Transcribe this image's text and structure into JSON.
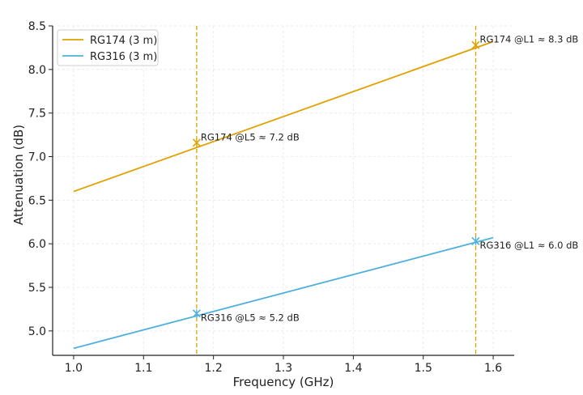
{
  "chart_data": {
    "type": "line",
    "xlabel": "Frequency (GHz)",
    "ylabel": "Attenuation (dB)",
    "xlim": [
      0.97,
      1.63
    ],
    "ylim": [
      4.72,
      8.5
    ],
    "xticks": [
      "1.0",
      "1.1",
      "1.2",
      "1.3",
      "1.4",
      "1.5",
      "1.6"
    ],
    "yticks": [
      "5.0",
      "5.5",
      "6.0",
      "6.5",
      "7.0",
      "7.5",
      "8.0",
      "8.5"
    ],
    "grid": true,
    "legend_position": "top-left",
    "series": [
      {
        "name": "RG174 (3 m)",
        "color": "#E0A100",
        "x": [
          1.0,
          1.6
        ],
        "y": [
          6.6,
          8.32
        ]
      },
      {
        "name": "RG316 (3 m)",
        "color": "#4EB0DE",
        "x": [
          1.0,
          1.6
        ],
        "y": [
          4.8,
          6.07
        ]
      }
    ],
    "vlines": [
      {
        "x": 1.176,
        "color": "#E0A100",
        "style": "dashed"
      },
      {
        "x": 1.575,
        "color": "#E0A100",
        "style": "dashed"
      }
    ],
    "markers": [
      {
        "series": 0,
        "x": 1.176,
        "y": 7.16,
        "label": "RG174 @L5 ≈ 7.2 dB",
        "label_pos": "right"
      },
      {
        "series": 0,
        "x": 1.575,
        "y": 8.28,
        "label": "RG174 @L1 ≈ 8.3 dB",
        "label_pos": "right"
      },
      {
        "series": 1,
        "x": 1.176,
        "y": 5.2,
        "label": "RG316 @L5 ≈ 5.2 dB",
        "label_pos": "below-right"
      },
      {
        "series": 1,
        "x": 1.575,
        "y": 6.03,
        "label": "RG316 @L1 ≈ 6.0 dB",
        "label_pos": "below-right"
      }
    ]
  }
}
